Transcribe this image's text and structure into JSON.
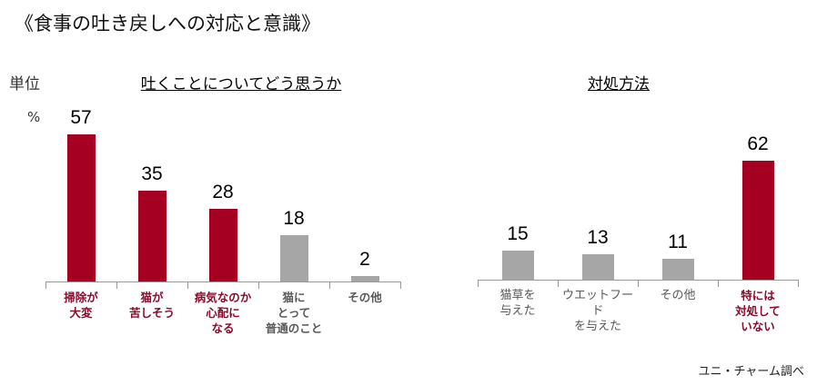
{
  "title": "《食事の吐き戻しへの対応と意識》",
  "unit_label": "単位",
  "percent_label": "%",
  "source": "ユニ・チャーム調べ",
  "colors": {
    "highlight": "#A50021",
    "neutral": "#A6A6A6",
    "highlight_text": "#8B0A2A",
    "neutral_text": "#595959"
  },
  "charts": [
    {
      "subtitle": "吐くことについてどう思うか",
      "bars": [
        {
          "label": "掃除が\n大変",
          "value": "57",
          "highlight": true
        },
        {
          "label": "猫が\n苦しそう",
          "value": "35",
          "highlight": true
        },
        {
          "label": "病気なのか\n心配に\nなる",
          "value": "28",
          "highlight": true
        },
        {
          "label": "猫に\nとって\n普通のこと",
          "value": "18",
          "highlight": false
        },
        {
          "label": "その他",
          "value": "2",
          "highlight": false
        }
      ]
    },
    {
      "subtitle": "対処方法",
      "bars": [
        {
          "label": "猫草を\n与えた",
          "value": "15",
          "highlight": false
        },
        {
          "label": "ウエットフード\nを与えた",
          "value": "13",
          "highlight": false
        },
        {
          "label": "その他",
          "value": "11",
          "highlight": false
        },
        {
          "label": "特には\n対処して\nいない",
          "value": "62",
          "highlight": true
        }
      ]
    }
  ],
  "chart_data": [
    {
      "type": "bar",
      "title": "吐くことについてどう思うか",
      "categories": [
        "掃除が大変",
        "猫が苦しそう",
        "病気なのか心配になる",
        "猫にとって普通のこと",
        "その他"
      ],
      "values": [
        57,
        35,
        28,
        18,
        2
      ],
      "xlabel": "",
      "ylabel": "%",
      "ylim": [
        0,
        60
      ],
      "grid": false,
      "legend": null
    },
    {
      "type": "bar",
      "title": "対処方法",
      "categories": [
        "猫草を与えた",
        "ウエットフードを与えた",
        "その他",
        "特には対処していない"
      ],
      "values": [
        15,
        13,
        11,
        62
      ],
      "xlabel": "",
      "ylabel": "%",
      "ylim": [
        0,
        65
      ],
      "grid": false,
      "legend": null
    }
  ]
}
